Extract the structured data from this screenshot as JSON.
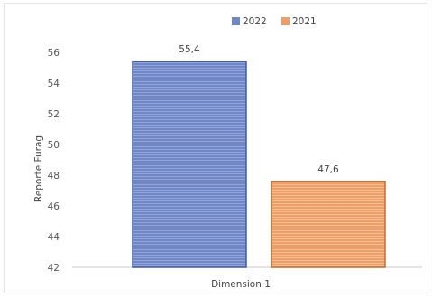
{
  "chart_data": {
    "type": "bar",
    "categories": [
      "Dimension 1"
    ],
    "series": [
      {
        "name": "2022",
        "values": [
          55.4
        ],
        "label": "55,4",
        "color": "#7086c6"
      },
      {
        "name": "2021",
        "values": [
          47.6
        ],
        "label": "47,6",
        "color": "#ee9f67"
      }
    ],
    "ylabel": "Reporte Furag",
    "xlabel": "",
    "ylim": [
      42,
      56
    ],
    "yticks": [
      42,
      44,
      46,
      48,
      50,
      52,
      54,
      56
    ],
    "ytick_labels": [
      "42",
      "44",
      "46",
      "48",
      "50",
      "52",
      "54",
      "56"
    ],
    "legend_position": "top",
    "grid": false
  }
}
